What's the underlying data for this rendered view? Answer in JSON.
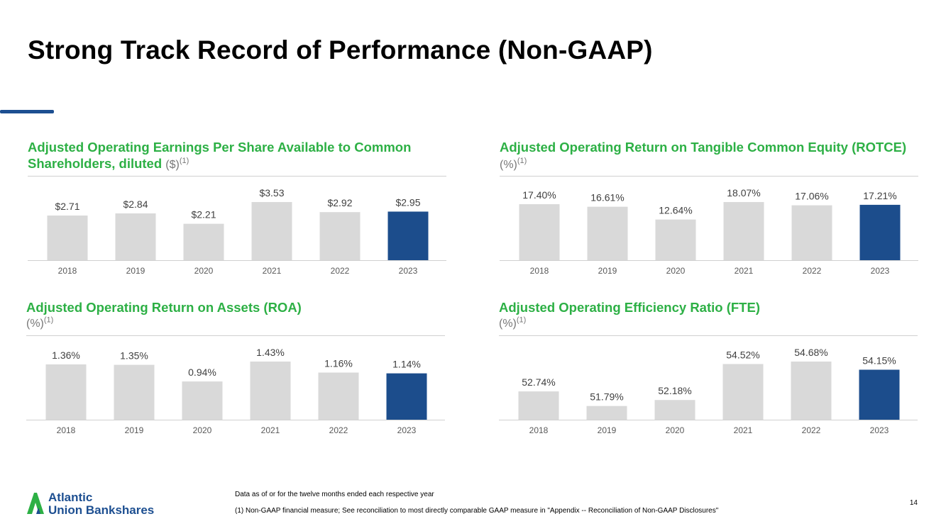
{
  "title": "Strong Track Record of Performance (Non-GAAP)",
  "colors": {
    "accent_bar": "#1d4f91",
    "highlight": "#1c4d8c",
    "base_bar": "#d9d9d9",
    "heading_green": "#2db045",
    "logo_green": "#2db045",
    "logo_blue": "#1d4f91"
  },
  "chart_data": [
    {
      "id": "eps",
      "type": "bar",
      "title": "Adjusted Operating Earnings Per Share Available to Common Shareholders, diluted",
      "unit": "($)",
      "footnote_ref": "(1)",
      "categories": [
        "2018",
        "2019",
        "2020",
        "2021",
        "2022",
        "2023"
      ],
      "values": [
        2.71,
        2.84,
        2.21,
        3.53,
        2.92,
        2.95
      ],
      "labels": [
        "$2.71",
        "$2.84",
        "$2.21",
        "$3.53",
        "$2.92",
        "$2.95"
      ],
      "highlight_index": 5,
      "ylim": [
        0,
        3.53
      ]
    },
    {
      "id": "rotce",
      "type": "bar",
      "title": "Adjusted Operating Return on Tangible Common Equity (ROTCE)",
      "unit": "(%)",
      "footnote_ref": "(1)",
      "categories": [
        "2018",
        "2019",
        "2020",
        "2021",
        "2022",
        "2023"
      ],
      "values": [
        17.4,
        16.61,
        12.64,
        18.07,
        17.06,
        17.21
      ],
      "labels": [
        "17.40%",
        "16.61%",
        "12.64%",
        "18.07%",
        "17.06%",
        "17.21%"
      ],
      "highlight_index": 5,
      "ylim": [
        0,
        18.07
      ]
    },
    {
      "id": "roa",
      "type": "bar",
      "title": "Adjusted Operating Return on Assets (ROA)",
      "unit": "(%)",
      "footnote_ref": "(1)",
      "categories": [
        "2018",
        "2019",
        "2020",
        "2021",
        "2022",
        "2023"
      ],
      "values": [
        1.36,
        1.35,
        0.94,
        1.43,
        1.16,
        1.14
      ],
      "labels": [
        "1.36%",
        "1.35%",
        "0.94%",
        "1.43%",
        "1.16%",
        "1.14%"
      ],
      "highlight_index": 5,
      "ylim": [
        0,
        1.43
      ]
    },
    {
      "id": "efficiency",
      "type": "bar",
      "title": "Adjusted Operating Efficiency Ratio (FTE)",
      "unit": "(%)",
      "footnote_ref": "(1)",
      "categories": [
        "2018",
        "2019",
        "2020",
        "2021",
        "2022",
        "2023"
      ],
      "values": [
        52.74,
        51.79,
        52.18,
        54.52,
        54.68,
        54.15
      ],
      "labels": [
        "52.74%",
        "51.79%",
        "52.18%",
        "54.52%",
        "54.68%",
        "54.15%"
      ],
      "highlight_index": 5,
      "ylim": [
        50.9,
        54.68
      ]
    }
  ],
  "logo": {
    "line1": "Atlantic",
    "line2": "Union Bankshares"
  },
  "footnotes": {
    "data_note": "Data as of or for the twelve months ended each respective year",
    "non_gaap_note": "(1) Non-GAAP financial measure; See reconciliation to most directly comparable GAAP measure in \"Appendix -- Reconciliation of Non-GAAP Disclosures\""
  },
  "page_number": "14"
}
